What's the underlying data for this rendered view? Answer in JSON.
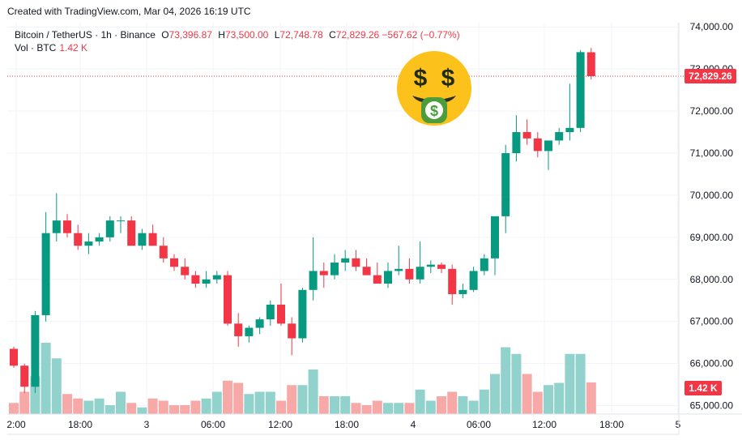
{
  "header": {
    "created_text": "Created with TradingView.com, Mar 04, 2026 16:19 UTC"
  },
  "legend": {
    "symbol": "Bitcoin / TetherUS · 1h · Binance",
    "o_label": "O",
    "o_value": "73,396.87",
    "h_label": "H",
    "h_value": "73,500.00",
    "l_label": "L",
    "l_value": "72,748.78",
    "c_label": "C",
    "c_value": "72,829.26",
    "change": "−567.62 (−0.77%)",
    "vol_label": "Vol · BTC",
    "vol_value": "1.42 K"
  },
  "colors": {
    "up": "#089981",
    "down": "#f23645",
    "vol_up": "#92d2cc",
    "vol_down": "#f7a9a7"
  },
  "emoji": {
    "icon": "money-mouth-face-icon"
  },
  "chart_data": {
    "type": "candlestick",
    "price_axis": {
      "ticks": [
        "74,000.00",
        "73,000.00",
        "72,000.00",
        "71,000.00",
        "70,000.00",
        "69,000.00",
        "68,000.00",
        "67,000.00",
        "66,000.00",
        "65,000.00"
      ],
      "ylim": [
        64800,
        74100
      ]
    },
    "time_axis": {
      "ticks": [
        "2:00",
        "18:00",
        "3",
        "06:00",
        "12:00",
        "18:00",
        "4",
        "06:00",
        "12:00",
        "18:00",
        "5"
      ]
    },
    "last_price_label": "72,829.26",
    "volume_label": "1.42 K",
    "candles": [
      {
        "o": 66350,
        "h": 66400,
        "l": 65900,
        "c": 65950,
        "v": 0.5
      },
      {
        "o": 65950,
        "h": 66000,
        "l": 65300,
        "c": 65450,
        "v": 1.0
      },
      {
        "o": 65450,
        "h": 67250,
        "l": 65300,
        "c": 67150,
        "v": 1.7
      },
      {
        "o": 67150,
        "h": 69600,
        "l": 67000,
        "c": 69100,
        "v": 3.2
      },
      {
        "o": 69100,
        "h": 70050,
        "l": 68900,
        "c": 69400,
        "v": 2.5
      },
      {
        "o": 69400,
        "h": 69550,
        "l": 69000,
        "c": 69100,
        "v": 0.9
      },
      {
        "o": 69100,
        "h": 69300,
        "l": 68700,
        "c": 68800,
        "v": 0.7
      },
      {
        "o": 68800,
        "h": 69100,
        "l": 68600,
        "c": 68900,
        "v": 0.6
      },
      {
        "o": 68900,
        "h": 69100,
        "l": 68800,
        "c": 69000,
        "v": 0.7
      },
      {
        "o": 69000,
        "h": 69500,
        "l": 68900,
        "c": 69400,
        "v": 0.4
      },
      {
        "o": 69400,
        "h": 69500,
        "l": 69100,
        "c": 69400,
        "v": 1.0
      },
      {
        "o": 69400,
        "h": 69500,
        "l": 68800,
        "c": 68800,
        "v": 0.5
      },
      {
        "o": 68800,
        "h": 69200,
        "l": 68700,
        "c": 69100,
        "v": 0.3
      },
      {
        "o": 69100,
        "h": 69300,
        "l": 68800,
        "c": 68800,
        "v": 0.7
      },
      {
        "o": 68800,
        "h": 69000,
        "l": 68400,
        "c": 68500,
        "v": 0.6
      },
      {
        "o": 68500,
        "h": 68600,
        "l": 68200,
        "c": 68300,
        "v": 0.4
      },
      {
        "o": 68300,
        "h": 68500,
        "l": 68000,
        "c": 68100,
        "v": 0.4
      },
      {
        "o": 68100,
        "h": 68200,
        "l": 67800,
        "c": 67900,
        "v": 0.6
      },
      {
        "o": 67900,
        "h": 68200,
        "l": 67800,
        "c": 68000,
        "v": 0.7
      },
      {
        "o": 68000,
        "h": 68200,
        "l": 67900,
        "c": 68100,
        "v": 1.0
      },
      {
        "o": 68100,
        "h": 68200,
        "l": 66900,
        "c": 66950,
        "v": 1.5
      },
      {
        "o": 66950,
        "h": 67200,
        "l": 66400,
        "c": 66650,
        "v": 1.4
      },
      {
        "o": 66650,
        "h": 66900,
        "l": 66500,
        "c": 66850,
        "v": 0.9
      },
      {
        "o": 66850,
        "h": 67100,
        "l": 66700,
        "c": 67050,
        "v": 1.0
      },
      {
        "o": 67050,
        "h": 67500,
        "l": 66900,
        "c": 67400,
        "v": 1.0
      },
      {
        "o": 67400,
        "h": 67900,
        "l": 66900,
        "c": 66950,
        "v": 0.6
      },
      {
        "o": 66950,
        "h": 67100,
        "l": 66200,
        "c": 66600,
        "v": 1.3
      },
      {
        "o": 66600,
        "h": 67800,
        "l": 66500,
        "c": 67750,
        "v": 1.3
      },
      {
        "o": 67750,
        "h": 69000,
        "l": 67500,
        "c": 68200,
        "v": 2.0
      },
      {
        "o": 68200,
        "h": 68400,
        "l": 67800,
        "c": 68100,
        "v": 0.8
      },
      {
        "o": 68100,
        "h": 68600,
        "l": 68000,
        "c": 68400,
        "v": 0.8
      },
      {
        "o": 68400,
        "h": 68700,
        "l": 68200,
        "c": 68500,
        "v": 0.8
      },
      {
        "o": 68500,
        "h": 68700,
        "l": 68200,
        "c": 68300,
        "v": 0.5
      },
      {
        "o": 68300,
        "h": 68500,
        "l": 68100,
        "c": 68100,
        "v": 0.4
      },
      {
        "o": 68100,
        "h": 68400,
        "l": 67900,
        "c": 67900,
        "v": 0.6
      },
      {
        "o": 67900,
        "h": 68400,
        "l": 67800,
        "c": 68200,
        "v": 0.5
      },
      {
        "o": 68200,
        "h": 68800,
        "l": 68100,
        "c": 68250,
        "v": 0.5
      },
      {
        "o": 68250,
        "h": 68500,
        "l": 67900,
        "c": 68000,
        "v": 0.5
      },
      {
        "o": 68000,
        "h": 68900,
        "l": 67900,
        "c": 68300,
        "v": 1.1
      },
      {
        "o": 68300,
        "h": 68450,
        "l": 68150,
        "c": 68350,
        "v": 0.6
      },
      {
        "o": 68350,
        "h": 68400,
        "l": 68150,
        "c": 68250,
        "v": 0.8
      },
      {
        "o": 68250,
        "h": 68350,
        "l": 67400,
        "c": 67650,
        "v": 1.0
      },
      {
        "o": 67650,
        "h": 67900,
        "l": 67550,
        "c": 67750,
        "v": 0.8
      },
      {
        "o": 67750,
        "h": 68300,
        "l": 67700,
        "c": 68200,
        "v": 0.6
      },
      {
        "o": 68200,
        "h": 68600,
        "l": 68100,
        "c": 68500,
        "v": 1.1
      },
      {
        "o": 68500,
        "h": 69500,
        "l": 68100,
        "c": 69500,
        "v": 1.8
      },
      {
        "o": 69500,
        "h": 71200,
        "l": 69100,
        "c": 71000,
        "v": 3.0
      },
      {
        "o": 71000,
        "h": 71900,
        "l": 70800,
        "c": 71500,
        "v": 2.7
      },
      {
        "o": 71500,
        "h": 71800,
        "l": 71200,
        "c": 71350,
        "v": 1.8
      },
      {
        "o": 71350,
        "h": 71500,
        "l": 70900,
        "c": 71050,
        "v": 1.0
      },
      {
        "o": 71050,
        "h": 71300,
        "l": 70600,
        "c": 71300,
        "v": 1.3
      },
      {
        "o": 71300,
        "h": 71600,
        "l": 71200,
        "c": 71500,
        "v": 1.4
      },
      {
        "o": 71500,
        "h": 72650,
        "l": 71300,
        "c": 71600,
        "v": 2.7
      },
      {
        "o": 71600,
        "h": 73450,
        "l": 71500,
        "c": 73400,
        "v": 2.7
      },
      {
        "o": 73396.87,
        "h": 73500,
        "l": 72748.78,
        "c": 72829.26,
        "v": 1.42
      }
    ],
    "volume_scale_max": 4.0
  }
}
